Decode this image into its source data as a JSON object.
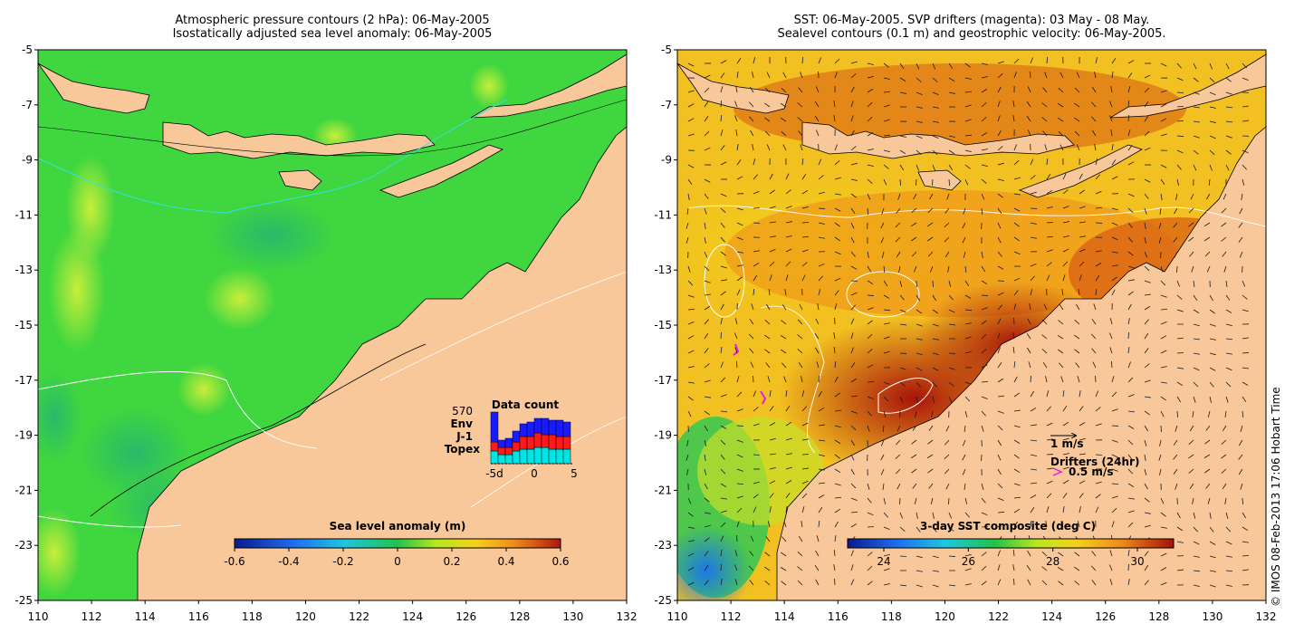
{
  "left_panel": {
    "title_line1": "Atmospheric pressure contours (2 hPa): 06-May-2005",
    "title_line2": "Isostatically adjusted sea level anomaly: 06-May-2005",
    "colorbar": {
      "title": "Sea level anomaly (m)",
      "ticks": [
        "-0.6",
        "-0.4",
        "-0.2",
        "0",
        "0.2",
        "0.4",
        "0.6"
      ]
    },
    "data_count": {
      "title": "Data count",
      "total": "570",
      "legend": [
        {
          "label": "Env",
          "color": "#1a1aff"
        },
        {
          "label": "J-1",
          "color": "#ff1a1a"
        },
        {
          "label": "Topex",
          "color": "#00e5e5"
        }
      ],
      "xticks": [
        "-5d",
        "0",
        "5"
      ]
    }
  },
  "right_panel": {
    "title_line1": "SST: 06-May-2005. SVP drifters (magenta): 03 May - 08 May.",
    "title_line2": "Sealevel contours (0.1 m) and geostrophic velocity: 06-May-2005.",
    "colorbar": {
      "title": "3-day SST composite (deg C)",
      "ticks": [
        "24",
        "26",
        "28",
        "30"
      ]
    },
    "velocity_legend": "1 m/s",
    "drifters_legend": "Drifters (24hr)",
    "drifters_speed": "0.5 m/s"
  },
  "axes": {
    "x_ticks": [
      "110",
      "112",
      "114",
      "116",
      "118",
      "120",
      "122",
      "124",
      "126",
      "128",
      "130",
      "132"
    ],
    "y_ticks": [
      "-5",
      "-7",
      "-9",
      "-11",
      "-13",
      "-15",
      "-17",
      "-19",
      "-21",
      "-23",
      "-25"
    ],
    "lon_range": [
      110,
      132
    ],
    "lat_range": [
      -25,
      -5
    ]
  },
  "credit": "© IMOS 08-Feb-2013 17:06 Hobart Time",
  "colors": {
    "land": "#f8c79a",
    "sla_ocean": "#3fd63f",
    "sst_ocean": "#e88a18"
  }
}
